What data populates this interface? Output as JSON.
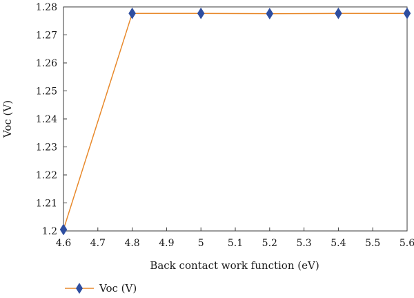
{
  "chart_data": {
    "type": "line",
    "title": "",
    "xlabel": "Back contact work function (eV)",
    "ylabel": "Voc (V)",
    "xlim": [
      4.6,
      5.6
    ],
    "ylim": [
      1.2,
      1.28
    ],
    "x_ticks": [
      4.6,
      4.7,
      4.8,
      4.9,
      5,
      5.1,
      5.2,
      5.3,
      5.4,
      5.5,
      5.6
    ],
    "x_tick_labels": [
      "4.6",
      "4.7",
      "4.8",
      "4.9",
      "5",
      "5.1",
      "5.2",
      "5.3",
      "5.4",
      "5.5",
      "5.6"
    ],
    "y_ticks": [
      1.2,
      1.21,
      1.22,
      1.23,
      1.24,
      1.25,
      1.26,
      1.27,
      1.28
    ],
    "y_tick_labels": [
      "1.2",
      "1.21",
      "1.22",
      "1.23",
      "1.24",
      "1.25",
      "1.26",
      "1.27",
      "1.28"
    ],
    "grid": false,
    "legend_position": "bottom-left",
    "series": [
      {
        "name": "Voc (V)",
        "marker": "diamond",
        "line_color": "#E8892B",
        "marker_color": "#2E4EA0",
        "x": [
          4.6,
          4.8,
          5.0,
          5.2,
          5.4,
          5.6
        ],
        "y": [
          1.2005,
          1.2777,
          1.2777,
          1.2776,
          1.2777,
          1.2777
        ]
      }
    ]
  }
}
